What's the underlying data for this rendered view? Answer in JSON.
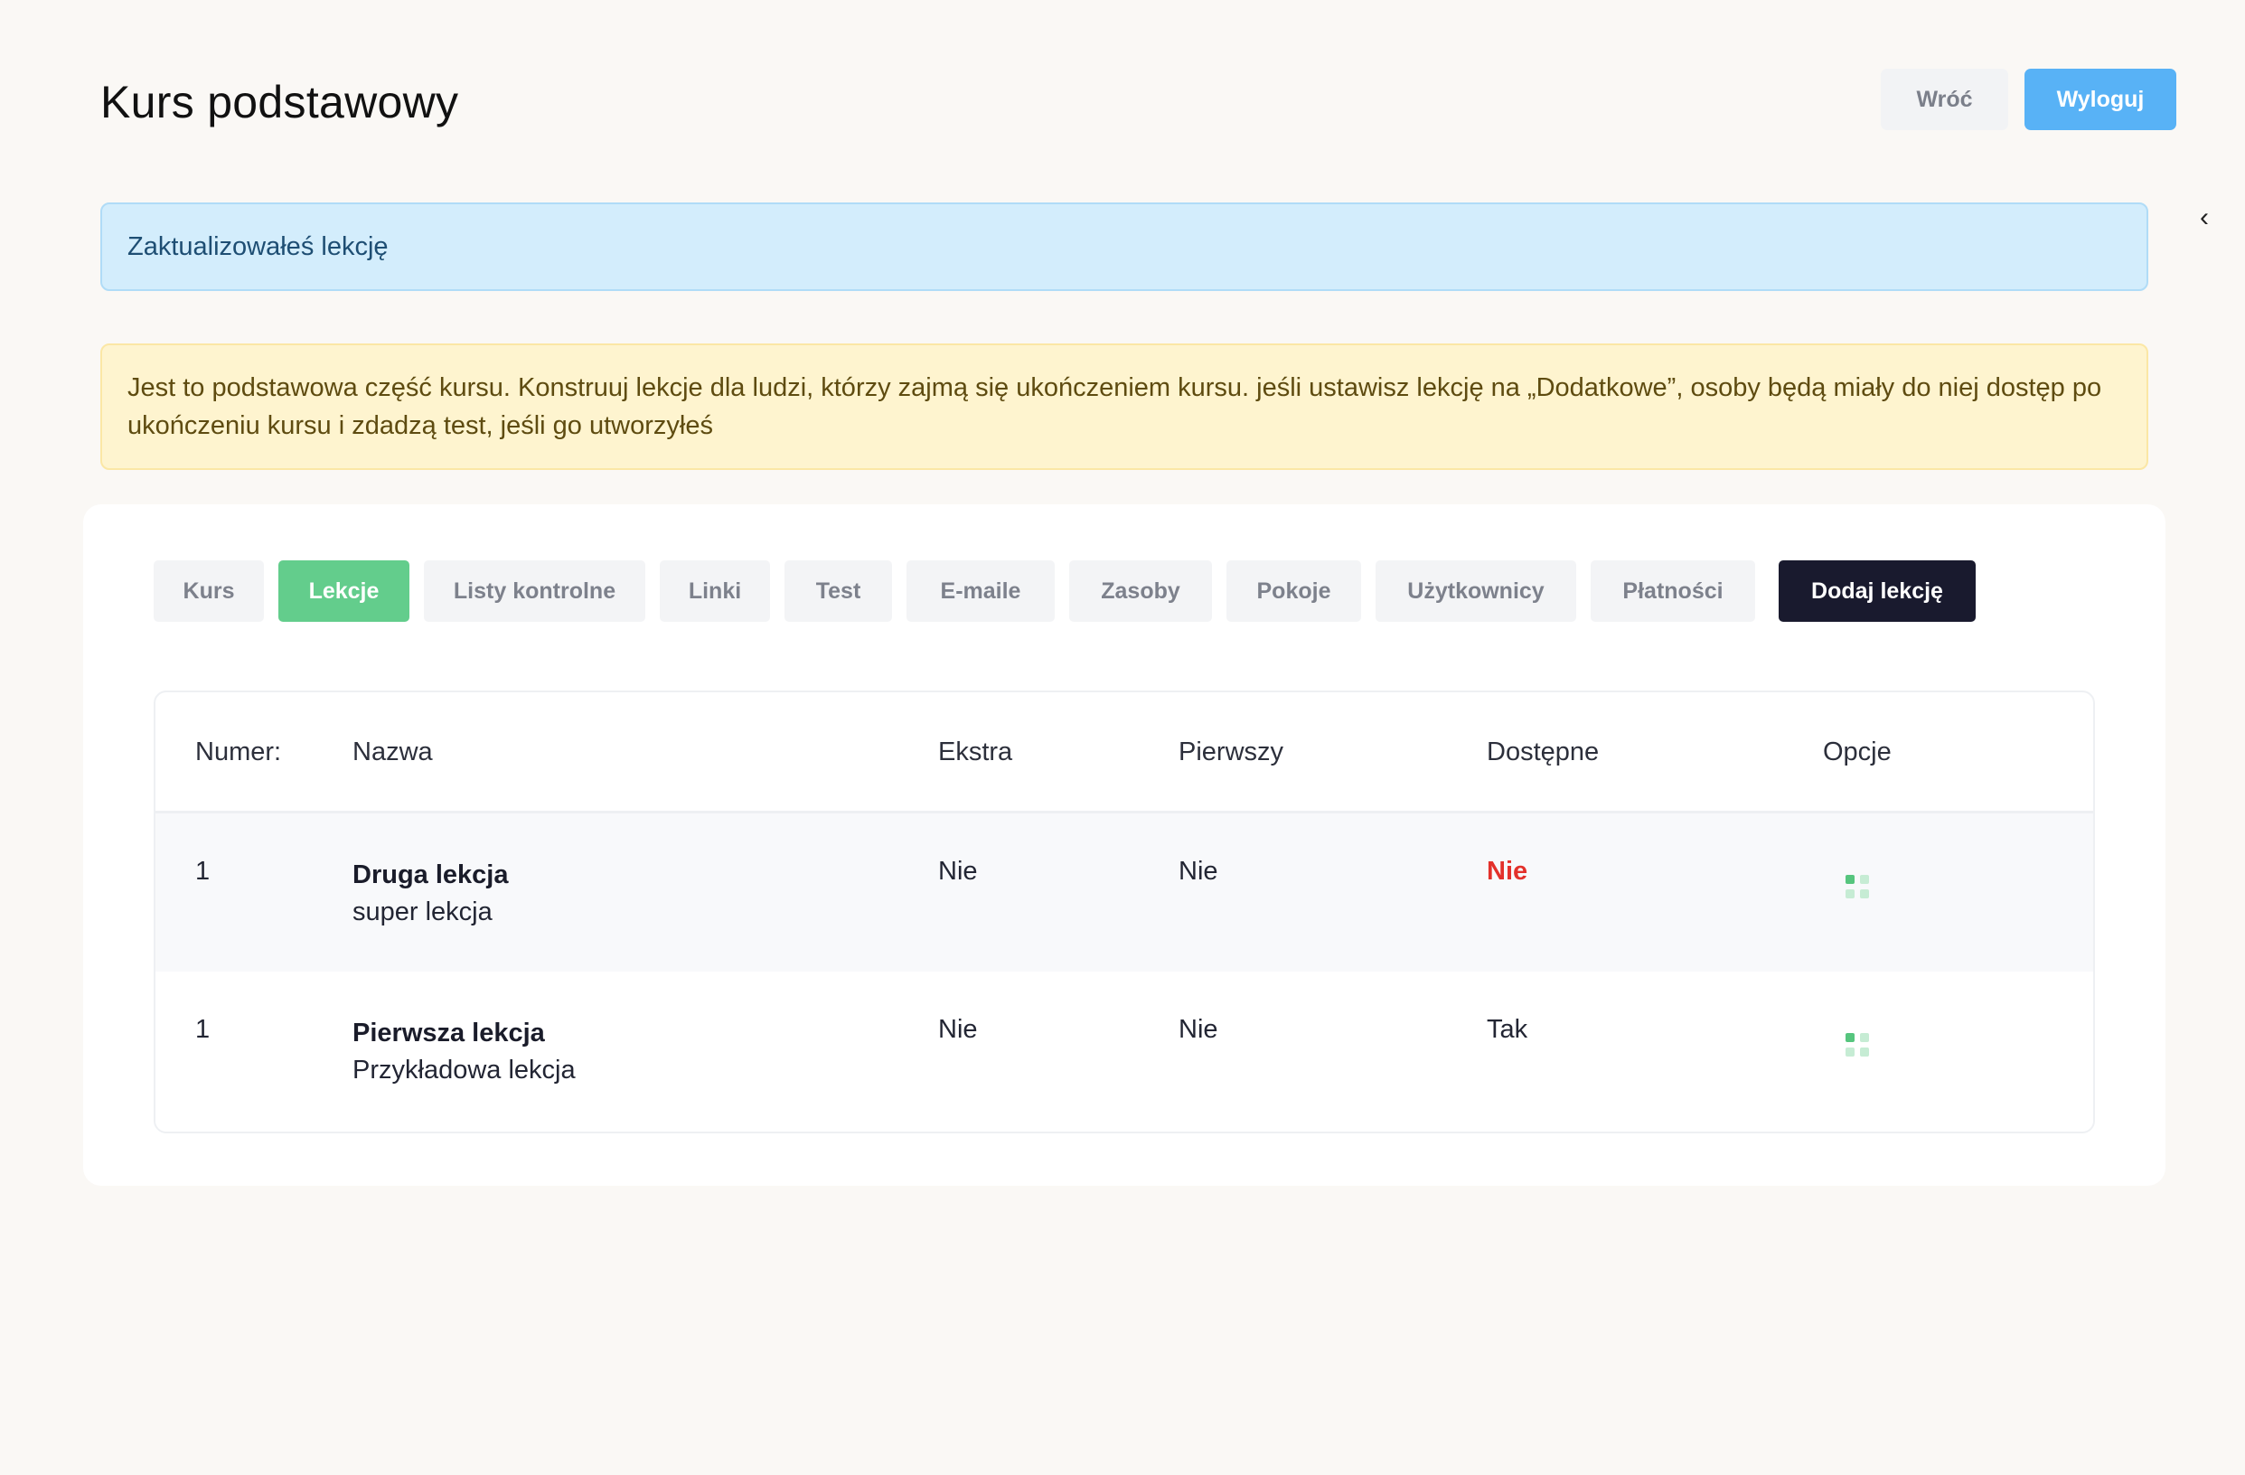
{
  "header": {
    "title": "Kurs podstawowy",
    "back_label": "Wróć",
    "logout_label": "Wyloguj",
    "collapse_icon": "chevron-left-icon"
  },
  "alerts": {
    "info": "Zaktualizowałeś lekcję",
    "warning": "Jest to podstawowa część kursu. Konstruuj lekcje dla ludzi, którzy zajmą się ukończeniem kursu. jeśli ustawisz lekcję na „Dodatkowe”, osoby będą miały do niej dostęp po ukończeniu kursu i zdadzą test, jeśli go utworzyłeś"
  },
  "tabs": [
    {
      "label": "Kurs"
    },
    {
      "label": "Lekcje"
    },
    {
      "label": "Listy kontrolne"
    },
    {
      "label": "Linki"
    },
    {
      "label": "Test"
    },
    {
      "label": "E-maile"
    },
    {
      "label": "Zasoby"
    },
    {
      "label": "Pokoje"
    },
    {
      "label": "Użytkownicy"
    },
    {
      "label": "Płatności"
    }
  ],
  "add_lesson_label": "Dodaj lekcję",
  "table": {
    "headers": {
      "number": "Numer:",
      "name": "Nazwa",
      "extra": "Ekstra",
      "first": "Pierwszy",
      "available": "Dostępne",
      "options": "Opcje"
    },
    "rows": [
      {
        "number": "1",
        "name": "Druga lekcja",
        "description": "super lekcja",
        "extra": "Nie",
        "first": "Nie",
        "available": "Nie"
      },
      {
        "number": "1",
        "name": "Pierwsza lekcja",
        "description": "Przykładowa lekcja",
        "extra": "Nie",
        "first": "Nie",
        "available": "Tak"
      }
    ]
  },
  "colors": {
    "accent_green": "#63cd8c",
    "accent_blue": "#58b2f6",
    "dark_button": "#191a2e",
    "status_no": "#e3312b"
  }
}
